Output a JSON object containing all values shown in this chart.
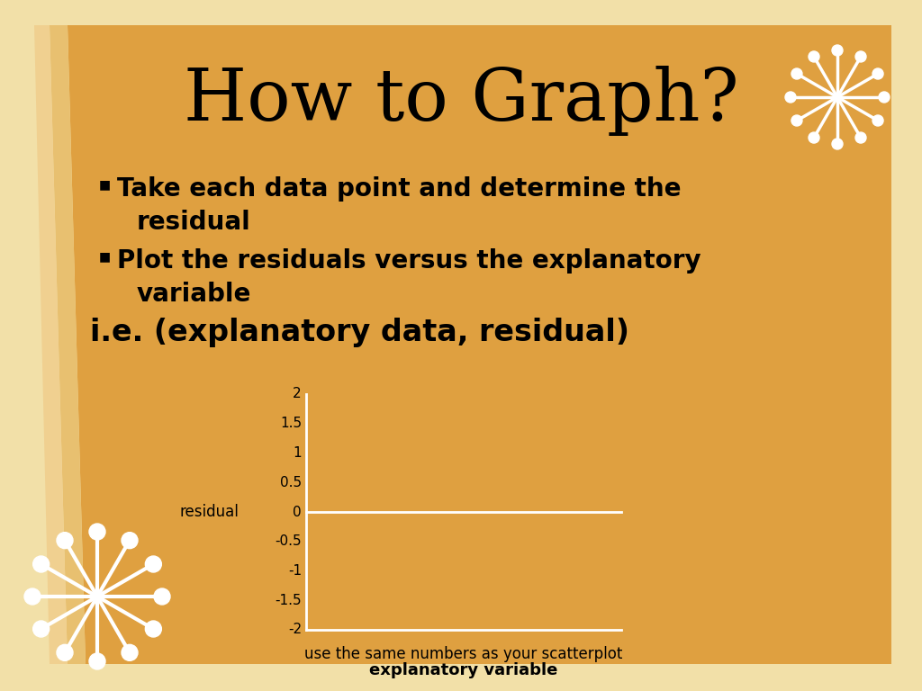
{
  "title": "How to Graph?",
  "title_fontsize": 58,
  "bullet1_line1": "Take each data point and determine the",
  "bullet1_line2": "residual",
  "bullet2_line1": "Plot the residuals versus the explanatory",
  "bullet2_line2": "variable",
  "ie_text": "i.e. (explanatory data, residual)",
  "ylabel_text": "residual",
  "xlabel_line1": "use the same numbers as your scatterplot",
  "xlabel_line2": "explanatory variable",
  "yticks": [
    2,
    1.5,
    1,
    0.5,
    0,
    -0.5,
    -1,
    -1.5,
    -2
  ],
  "bg_outer": "#f2e0a8",
  "bg_card": "#dfa040",
  "text_color": "#000000",
  "axis_color": "#ffffff",
  "zeroline_color": "#ffffff",
  "bullet_fontsize": 20,
  "ie_fontsize": 24,
  "axis_label_fontsize": 12,
  "tick_fontsize": 11,
  "snowflake_color": "#ffffff"
}
